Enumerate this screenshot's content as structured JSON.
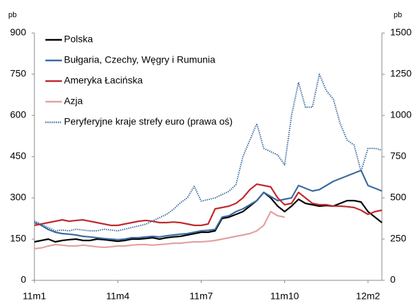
{
  "chart_data": {
    "type": "line",
    "y_label": "pb",
    "y2_label": "pb",
    "x": [
      0,
      0.25,
      0.5,
      0.75,
      1,
      1.25,
      1.5,
      1.75,
      2,
      2.25,
      2.5,
      2.75,
      3,
      3.25,
      3.5,
      3.75,
      4,
      4.25,
      4.5,
      4.75,
      5,
      5.25,
      5.5,
      5.75,
      6,
      6.25,
      6.5,
      6.75,
      7,
      7.25,
      7.5,
      7.75,
      8,
      8.25,
      8.5,
      8.75,
      9,
      9.25,
      9.5,
      9.75,
      10,
      10.25,
      10.5,
      10.75,
      11,
      11.25,
      11.5,
      11.75,
      12,
      12.25,
      12.5
    ],
    "xlim": [
      0,
      12.5
    ],
    "xticks": [
      {
        "value": 0,
        "label": "11m1"
      },
      {
        "value": 3,
        "label": "11m4"
      },
      {
        "value": 6,
        "label": "11m7"
      },
      {
        "value": 9,
        "label": "11m10"
      },
      {
        "value": 12,
        "label": "12m2"
      }
    ],
    "ylim": [
      0,
      900
    ],
    "yticks": [
      0,
      150,
      300,
      450,
      600,
      750,
      900
    ],
    "y2lim": [
      0,
      1500
    ],
    "y2ticks": [
      0,
      250,
      500,
      750,
      1000,
      1250,
      1500
    ],
    "grid": false,
    "legend": "upper left",
    "series": [
      {
        "name": "Polska",
        "color": "#000000",
        "style": "solid",
        "values": [
          140,
          145,
          150,
          140,
          145,
          148,
          150,
          145,
          145,
          150,
          148,
          145,
          142,
          145,
          150,
          150,
          152,
          155,
          150,
          155,
          158,
          160,
          165,
          170,
          175,
          175,
          180,
          225,
          230,
          240,
          250,
          270,
          290,
          320,
          300,
          270,
          250,
          270,
          295,
          280,
          275,
          270,
          272,
          270,
          280,
          290,
          290,
          285,
          250,
          230,
          210
        ]
      },
      {
        "name": "Bułgaria, Czechy, Węgry i Rumunia",
        "color": "#3b6aa0",
        "style": "solid",
        "values": [
          210,
          200,
          185,
          175,
          170,
          168,
          165,
          160,
          158,
          155,
          152,
          150,
          148,
          150,
          155,
          155,
          158,
          160,
          158,
          162,
          165,
          168,
          170,
          175,
          180,
          182,
          185,
          230,
          235,
          250,
          260,
          275,
          290,
          320,
          305,
          290,
          295,
          300,
          345,
          335,
          325,
          330,
          345,
          360,
          370,
          380,
          390,
          400,
          345,
          335,
          325
        ]
      },
      {
        "name": "Ameryka Łacińska",
        "color": "#c0282d",
        "style": "solid",
        "values": [
          200,
          205,
          210,
          215,
          220,
          215,
          218,
          220,
          215,
          210,
          205,
          200,
          200,
          205,
          210,
          215,
          218,
          215,
          210,
          210,
          212,
          210,
          205,
          200,
          200,
          205,
          260,
          265,
          270,
          280,
          300,
          330,
          350,
          345,
          340,
          300,
          275,
          280,
          320,
          300,
          280,
          275,
          275,
          270,
          270,
          268,
          265,
          255,
          240,
          250,
          255
        ]
      },
      {
        "name": "Azja",
        "color": "#e3a0a0",
        "style": "solid",
        "values": [
          115,
          118,
          125,
          130,
          128,
          125,
          125,
          128,
          125,
          122,
          120,
          122,
          125,
          125,
          128,
          130,
          130,
          128,
          130,
          132,
          135,
          135,
          138,
          140,
          140,
          142,
          145,
          150,
          155,
          160,
          165,
          170,
          180,
          200,
          250,
          235,
          230,
          null,
          null,
          null,
          null,
          null,
          null,
          null,
          null,
          null,
          null,
          null,
          null,
          null,
          null
        ]
      },
      {
        "name": "Peryferyjne kraje strefy euro (prawa oś)",
        "color": "#3b6aa0",
        "style": "dotted",
        "axis": "y2",
        "values": [
          360,
          340,
          320,
          300,
          305,
          300,
          310,
          305,
          300,
          300,
          310,
          305,
          300,
          310,
          320,
          330,
          340,
          360,
          380,
          400,
          430,
          470,
          500,
          570,
          480,
          490,
          500,
          520,
          540,
          580,
          750,
          850,
          950,
          800,
          780,
          760,
          700,
          1000,
          1200,
          1050,
          1050,
          1250,
          1150,
          1100,
          950,
          850,
          820,
          660,
          800,
          800,
          790
        ]
      }
    ]
  }
}
